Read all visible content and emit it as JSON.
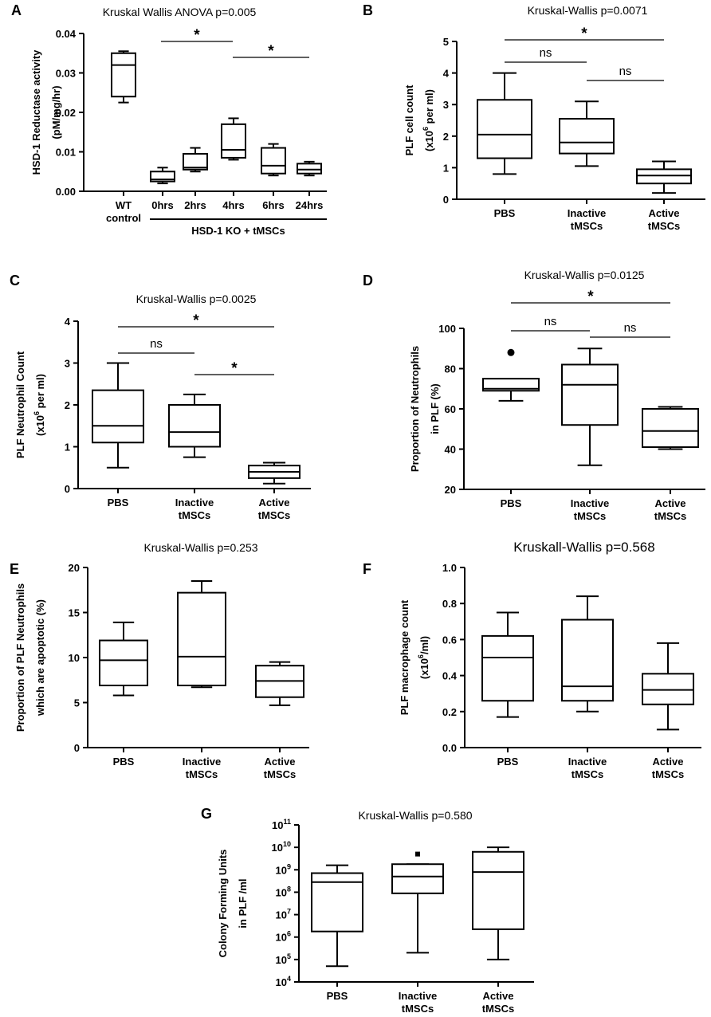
{
  "chart_data": [
    {
      "panel": "A",
      "type": "box",
      "title": "Kruskal Wallis ANOVA p=0.005",
      "ylabel": [
        "HSD-1 Reductase activity",
        "(pM/mg/hr)"
      ],
      "ylim": [
        0,
        0.04
      ],
      "yticks": [
        0,
        0.01,
        0.02,
        0.03,
        0.04
      ],
      "ytick_labels": [
        "0.00",
        "0.01",
        "0.02",
        "0.03",
        "0.04"
      ],
      "categories": [
        [
          "WT",
          "control"
        ],
        [
          "0hrs"
        ],
        [
          "2hrs"
        ],
        [
          "4hrs"
        ],
        [
          "6hrs"
        ],
        [
          "24hrs"
        ]
      ],
      "group_label": "HSD-1 KO + tMSCs",
      "boxes": [
        {
          "min": 0.0225,
          "q1": 0.024,
          "median": 0.032,
          "q3": 0.035,
          "max": 0.0355
        },
        {
          "min": 0.002,
          "q1": 0.0025,
          "median": 0.003,
          "q3": 0.005,
          "max": 0.006
        },
        {
          "min": 0.005,
          "q1": 0.0055,
          "median": 0.006,
          "q3": 0.0095,
          "max": 0.011
        },
        {
          "min": 0.008,
          "q1": 0.0085,
          "median": 0.0105,
          "q3": 0.017,
          "max": 0.0185
        },
        {
          "min": 0.004,
          "q1": 0.0045,
          "median": 0.0065,
          "q3": 0.011,
          "max": 0.012
        },
        {
          "min": 0.004,
          "q1": 0.0045,
          "median": 0.0055,
          "q3": 0.007,
          "max": 0.0075
        }
      ],
      "outliers": [],
      "annotations": [
        {
          "from": 1,
          "to": 3,
          "label": "*"
        },
        {
          "from": 3,
          "to": 5,
          "label": "*"
        }
      ]
    },
    {
      "panel": "B",
      "type": "box",
      "title": "Kruskal-Wallis p=0.0071",
      "ylabel": [
        "PLF cell count",
        "(x10^6 per ml)"
      ],
      "ylim": [
        0,
        5
      ],
      "yticks": [
        0,
        1,
        2,
        3,
        4,
        5
      ],
      "ytick_labels": [
        "0",
        "1",
        "2",
        "3",
        "4",
        "5"
      ],
      "categories": [
        [
          "PBS"
        ],
        [
          "Inactive",
          "tMSCs"
        ],
        [
          "Active",
          "tMSCs"
        ]
      ],
      "boxes": [
        {
          "min": 0.8,
          "q1": 1.3,
          "median": 2.05,
          "q3": 3.15,
          "max": 4.0
        },
        {
          "min": 1.05,
          "q1": 1.45,
          "median": 1.8,
          "q3": 2.55,
          "max": 3.1
        },
        {
          "min": 0.2,
          "q1": 0.5,
          "median": 0.75,
          "q3": 0.95,
          "max": 1.2
        }
      ],
      "outliers": [],
      "annotations": [
        {
          "from": 0,
          "to": 2,
          "label": "*"
        },
        {
          "from": 0,
          "to": 1,
          "label": "ns"
        },
        {
          "from": 1,
          "to": 2,
          "label": "ns"
        }
      ]
    },
    {
      "panel": "C",
      "type": "box",
      "title": "Kruskal-Wallis p=0.0025",
      "ylabel": [
        "PLF Neutrophil Count",
        "(x10^6 per ml)"
      ],
      "ylim": [
        0,
        4
      ],
      "yticks": [
        0,
        1,
        2,
        3,
        4
      ],
      "ytick_labels": [
        "0",
        "1",
        "2",
        "3",
        "4"
      ],
      "categories": [
        [
          "PBS"
        ],
        [
          "Inactive",
          "tMSCs"
        ],
        [
          "Active",
          "tMSCs"
        ]
      ],
      "boxes": [
        {
          "min": 0.5,
          "q1": 1.1,
          "median": 1.5,
          "q3": 2.35,
          "max": 3.0
        },
        {
          "min": 0.75,
          "q1": 1.0,
          "median": 1.35,
          "q3": 2.0,
          "max": 2.25
        },
        {
          "min": 0.12,
          "q1": 0.25,
          "median": 0.4,
          "q3": 0.55,
          "max": 0.62
        }
      ],
      "outliers": [],
      "annotations": [
        {
          "from": 0,
          "to": 2,
          "label": "*"
        },
        {
          "from": 0,
          "to": 1,
          "label": "ns"
        },
        {
          "from": 1,
          "to": 2,
          "label": "*"
        }
      ]
    },
    {
      "panel": "D",
      "type": "box",
      "title": "Kruskal-Wallis p=0.0125",
      "ylabel": [
        "Proportion of Neutrophils",
        "in PLF (%)"
      ],
      "ylim": [
        20,
        100
      ],
      "yticks": [
        20,
        40,
        60,
        80,
        100
      ],
      "ytick_labels": [
        "20",
        "40",
        "60",
        "80",
        "100"
      ],
      "categories": [
        [
          "PBS"
        ],
        [
          "Inactive",
          "tMSCs"
        ],
        [
          "Active",
          "tMSCs"
        ]
      ],
      "boxes": [
        {
          "min": 64,
          "q1": 69,
          "median": 70,
          "q3": 75,
          "max": 75
        },
        {
          "min": 32,
          "q1": 52,
          "median": 72,
          "q3": 82,
          "max": 90
        },
        {
          "min": 40,
          "q1": 41,
          "median": 49,
          "q3": 60,
          "max": 61
        }
      ],
      "outliers": [
        {
          "group": 0,
          "value": 88,
          "shape": "circle"
        }
      ],
      "annotations": [
        {
          "from": 0,
          "to": 2,
          "label": "*"
        },
        {
          "from": 0,
          "to": 1,
          "label": "ns"
        },
        {
          "from": 1,
          "to": 2,
          "label": "ns"
        }
      ]
    },
    {
      "panel": "E",
      "type": "box",
      "title": "Kruskal-Wallis p=0.253",
      "ylabel": [
        "Proportion of PLF Neutrophils",
        "which are apoptotic (%)"
      ],
      "ylim": [
        0,
        20
      ],
      "yticks": [
        0,
        5,
        10,
        15,
        20
      ],
      "ytick_labels": [
        "0",
        "5",
        "10",
        "15",
        "20"
      ],
      "categories": [
        [
          "PBS"
        ],
        [
          "Inactive",
          "tMSCs"
        ],
        [
          "Active",
          "tMSCs"
        ]
      ],
      "boxes": [
        {
          "min": 5.8,
          "q1": 6.9,
          "median": 9.7,
          "q3": 11.9,
          "max": 13.9
        },
        {
          "min": 6.7,
          "q1": 6.9,
          "median": 10.1,
          "q3": 17.2,
          "max": 18.5
        },
        {
          "min": 4.7,
          "q1": 5.6,
          "median": 7.4,
          "q3": 9.1,
          "max": 9.5
        }
      ],
      "outliers": [],
      "annotations": []
    },
    {
      "panel": "F",
      "type": "box",
      "title": "Kruskall-Wallis p=0.568",
      "ylabel": [
        "PLF macrophage count",
        "(x10^6/ml)"
      ],
      "ylim": [
        0,
        1.0
      ],
      "yticks": [
        0,
        0.2,
        0.4,
        0.6,
        0.8,
        1.0
      ],
      "ytick_labels": [
        "0.0",
        "0.2",
        "0.4",
        "0.6",
        "0.8",
        "1.0"
      ],
      "categories": [
        [
          "PBS"
        ],
        [
          "Inactive",
          "tMSCs"
        ],
        [
          "Active",
          "tMSCs"
        ]
      ],
      "boxes": [
        {
          "min": 0.17,
          "q1": 0.26,
          "median": 0.5,
          "q3": 0.62,
          "max": 0.75
        },
        {
          "min": 0.2,
          "q1": 0.26,
          "median": 0.34,
          "q3": 0.71,
          "max": 0.84
        },
        {
          "min": 0.1,
          "q1": 0.24,
          "median": 0.32,
          "q3": 0.41,
          "max": 0.58
        }
      ],
      "outliers": [],
      "annotations": []
    },
    {
      "panel": "G",
      "type": "box",
      "yscale": "log10",
      "title": "Kruskal-Wallis p=0.580",
      "ylabel": [
        "Colony Forming Units",
        "in PLF /ml"
      ],
      "ylim": [
        4,
        11
      ],
      "yticks": [
        4,
        5,
        6,
        7,
        8,
        9,
        10,
        11
      ],
      "ytick_labels": [
        "10^4",
        "10^5",
        "10^6",
        "10^7",
        "10^8",
        "10^9",
        "10^10",
        "10^11"
      ],
      "categories": [
        [
          "PBS"
        ],
        [
          "Inactive",
          "tMSCs"
        ],
        [
          "Active",
          "tMSCs"
        ]
      ],
      "boxes": [
        {
          "min": 4.7,
          "q1": 6.25,
          "median": 8.45,
          "q3": 8.85,
          "max": 9.2
        },
        {
          "min": 5.3,
          "q1": 7.95,
          "median": 8.7,
          "q3": 9.25,
          "max": 9.25
        },
        {
          "min": 5.0,
          "q1": 6.35,
          "median": 8.9,
          "q3": 9.8,
          "max": 10.0
        }
      ],
      "outliers": [
        {
          "group": 1,
          "value": 9.7,
          "shape": "square"
        }
      ],
      "annotations": []
    }
  ]
}
